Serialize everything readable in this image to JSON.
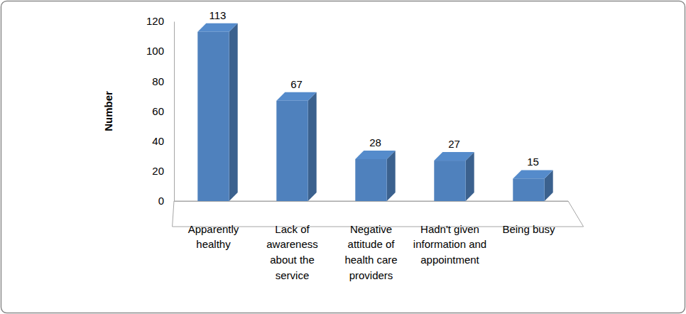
{
  "chart_data": {
    "type": "bar",
    "y_label": "Number",
    "categories": [
      "Apparently healthy",
      "Lack of awareness about the service",
      "Negative attitude of health care providers",
      "Hadn't given information and appointment",
      "Being busy"
    ],
    "values": [
      113,
      67,
      28,
      27,
      15
    ],
    "color": "#4f81bd",
    "ylim": [
      0,
      120
    ],
    "yticks": [
      0,
      20,
      40,
      60,
      80,
      100,
      120
    ],
    "grid": false,
    "data_labels": true
  }
}
